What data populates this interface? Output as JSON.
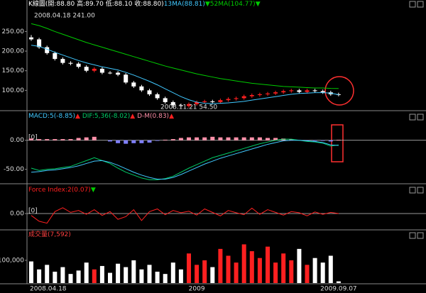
{
  "chart_data": [
    {
      "type": "candlestick",
      "header": [
        {
          "text": "K線圖(開:88.80 高:89.70 低:88.10 收:88.80)",
          "color": "#ffffff"
        },
        {
          "text": "13MA(88.81)",
          "color": "#40c8ff"
        },
        {
          "text": "▼",
          "color": "#00cc00"
        },
        {
          "text": "52MA(104.77)",
          "color": "#00cc00"
        },
        {
          "text": "▼",
          "color": "#00cc00"
        }
      ],
      "annotations": [
        {
          "text": "2008.04.18 241.00",
          "color": "#ff4040"
        },
        {
          "text": "2008.11.21 54.50",
          "color": "#00cc66"
        }
      ],
      "up_color": "#ff2020",
      "down_color": "#ffffff",
      "open": [
        235,
        230,
        210,
        195,
        180,
        170,
        168,
        160,
        150,
        155,
        145,
        145,
        140,
        120,
        110,
        100,
        90,
        80,
        70,
        62,
        60,
        65,
        70,
        72,
        70,
        75,
        78,
        80,
        85,
        88,
        90,
        92,
        95,
        98,
        100,
        96,
        100,
        98,
        95,
        90
      ],
      "close": [
        230,
        210,
        195,
        180,
        170,
        168,
        160,
        150,
        155,
        145,
        145,
        140,
        120,
        110,
        100,
        90,
        80,
        70,
        62,
        60,
        65,
        70,
        72,
        70,
        75,
        78,
        80,
        85,
        88,
        90,
        92,
        95,
        98,
        100,
        96,
        100,
        98,
        95,
        90,
        88.8
      ],
      "high": [
        241,
        234,
        214,
        199,
        184,
        174,
        172,
        164,
        159,
        159,
        149,
        149,
        144,
        124,
        114,
        104,
        94,
        84,
        74,
        66,
        69,
        74,
        76,
        76,
        79,
        82,
        84,
        89,
        92,
        94,
        96,
        99,
        102,
        104,
        104,
        104,
        104,
        102,
        99,
        94
      ],
      "low": [
        226,
        206,
        191,
        176,
        166,
        164,
        156,
        146,
        146,
        141,
        141,
        136,
        116,
        106,
        96,
        86,
        76,
        66,
        54.5,
        56,
        56,
        61,
        66,
        66,
        66,
        71,
        74,
        76,
        81,
        84,
        86,
        88,
        91,
        94,
        92,
        92,
        94,
        91,
        86,
        84.8
      ],
      "series": [
        {
          "name": "13MA",
          "color": "#40c8ff",
          "values": [
            215,
            212,
            205,
            197,
            190,
            183,
            176,
            170,
            165,
            160,
            156,
            152,
            146,
            139,
            131,
            123,
            114,
            104,
            94,
            84,
            76,
            70,
            67,
            66,
            67,
            68,
            70,
            72,
            75,
            78,
            81,
            84,
            87,
            90,
            92,
            93,
            94,
            94,
            93,
            88.81
          ]
        },
        {
          "name": "52MA",
          "color": "#00cc00",
          "values": [
            270,
            265,
            258,
            250,
            243,
            236,
            229,
            222,
            216,
            210,
            204,
            198,
            192,
            186,
            180,
            174,
            168,
            162,
            157,
            152,
            147,
            142,
            138,
            134,
            130,
            127,
            124,
            121,
            118,
            116,
            114,
            112,
            110,
            109,
            108,
            107,
            106,
            106,
            105,
            104.77
          ]
        }
      ],
      "ylim": [
        50,
        305
      ],
      "yticks": [
        {
          "value": 250,
          "label": "250.00"
        },
        {
          "value": 200,
          "label": "200.00"
        },
        {
          "value": 150,
          "label": "150.00"
        },
        {
          "value": 100,
          "label": "100.00"
        }
      ]
    },
    {
      "type": "macd",
      "header": [
        {
          "text": "MACD:5(-8.85)",
          "color": "#40c8ff"
        },
        {
          "text": "▲",
          "color": "#ff2020"
        },
        {
          "text": " DIF:5,36(-8.02)",
          "color": "#00cc66"
        },
        {
          "text": "▲",
          "color": "#ff2020"
        },
        {
          "text": " D-M(0.83)",
          "color": "#ff8fa8"
        },
        {
          "text": "▲",
          "color": "#ff2020"
        }
      ],
      "zero_label": "[0]",
      "hist_pos_color": "#ff8fa8",
      "hist_neg_color": "#8080ff",
      "hist": [
        3,
        2,
        2,
        2,
        2,
        2,
        4,
        5,
        6,
        0,
        -2,
        -5,
        -6,
        -5,
        -5,
        -4,
        -1,
        1,
        2,
        4,
        5,
        5,
        5,
        6,
        5,
        5,
        5,
        5,
        5,
        5,
        4,
        4,
        3,
        2,
        0,
        -1,
        -1,
        -1,
        -2,
        0.83
      ],
      "series": [
        {
          "name": "DIF",
          "color": "#00cc66",
          "values": [
            -48,
            -52,
            -50,
            -49,
            -47,
            -45,
            -40,
            -35,
            -30,
            -35,
            -40,
            -48,
            -55,
            -60,
            -65,
            -68,
            -68,
            -66,
            -62,
            -55,
            -48,
            -42,
            -36,
            -30,
            -26,
            -22,
            -18,
            -14,
            -10,
            -6,
            -3,
            0,
            2,
            2,
            0,
            -2,
            -3,
            -5,
            -10,
            -8.02
          ]
        },
        {
          "name": "MACD",
          "color": "#40c8ff",
          "values": [
            -55,
            -54,
            -52,
            -51,
            -49,
            -47,
            -44,
            -40,
            -36,
            -35,
            -38,
            -43,
            -49,
            -55,
            -60,
            -64,
            -67,
            -67,
            -64,
            -59,
            -53,
            -47,
            -41,
            -36,
            -31,
            -27,
            -23,
            -19,
            -15,
            -11,
            -7,
            -4,
            -1,
            0,
            0,
            -1,
            -2,
            -4,
            -8,
            -8.85
          ]
        }
      ],
      "ylim": [
        -70,
        40
      ],
      "yticks": [
        {
          "value": 0,
          "label": "0.00"
        },
        {
          "value": -50,
          "label": "-50.00"
        }
      ]
    },
    {
      "type": "line",
      "header": [
        {
          "text": "Force Index:2(0.07)",
          "color": "#ff2020"
        },
        {
          "text": "▼",
          "color": "#00cc00"
        }
      ],
      "zero_label": "[0]",
      "series": [
        {
          "name": "Force Index",
          "color": "#ff2020",
          "values": [
            -5,
            -20,
            -25,
            5,
            15,
            3,
            8,
            -2,
            10,
            -5,
            5,
            -15,
            -8,
            10,
            -18,
            5,
            12,
            -3,
            8,
            2,
            6,
            -4,
            12,
            3,
            -6,
            8,
            2,
            -3,
            14,
            -2,
            10,
            3,
            -4,
            5,
            2,
            -6,
            4,
            -2,
            3,
            0.07
          ]
        }
      ],
      "ylim": [
        -35,
        35
      ],
      "yticks": [
        {
          "value": 0,
          "label": "0.00"
        }
      ]
    },
    {
      "type": "volume",
      "header": [
        {
          "text": "成交量(7,592)",
          "color": "#ff4040"
        }
      ],
      "values": [
        95000,
        60000,
        80000,
        50000,
        70000,
        40000,
        55000,
        90000,
        60000,
        75000,
        45000,
        85000,
        70000,
        100000,
        60000,
        80000,
        50000,
        40000,
        90000,
        60000,
        130000,
        80000,
        100000,
        70000,
        150000,
        120000,
        90000,
        170000,
        140000,
        110000,
        160000,
        90000,
        130000,
        100000,
        150000,
        80000,
        110000,
        90000,
        120000,
        7592
      ],
      "categories": [
        "2008.04.18",
        null,
        null,
        null,
        null,
        null,
        null,
        null,
        null,
        null,
        null,
        null,
        null,
        null,
        null,
        null,
        null,
        null,
        null,
        null,
        null,
        "2009",
        null,
        null,
        null,
        null,
        null,
        null,
        null,
        null,
        null,
        null,
        null,
        null,
        null,
        null,
        null,
        null,
        null,
        "2009.09.07"
      ],
      "ylim": [
        0,
        215000
      ],
      "yticks": [
        {
          "value": 100000,
          "label": "100,000"
        }
      ]
    }
  ]
}
